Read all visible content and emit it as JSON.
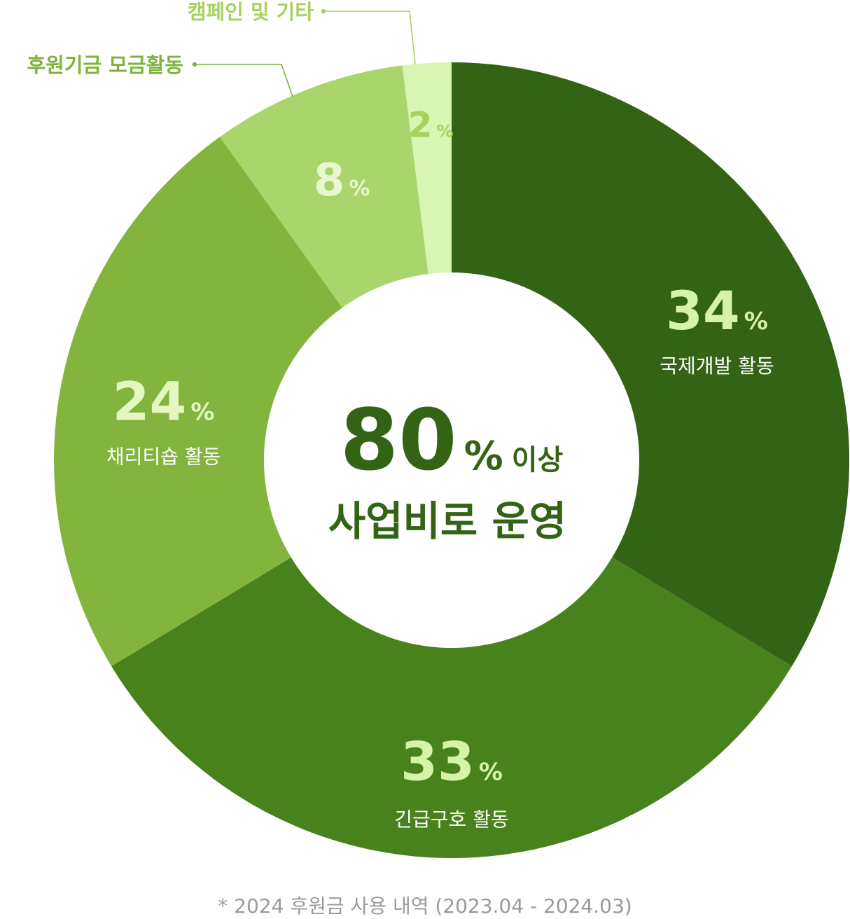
{
  "chart_data": {
    "type": "pie",
    "subtype": "donut",
    "title": "",
    "center": {
      "value": "80",
      "unit": "%",
      "suffix": "이상",
      "text": "사업비로 운영"
    },
    "slices": [
      {
        "label": "국제개발 활동",
        "value": 34,
        "color": "#336315",
        "value_color": "#d6f4a8",
        "label_color": "#ffffff"
      },
      {
        "label": "긴급구호 활동",
        "value": 33,
        "color": "#48821c",
        "value_color": "#d6f4a8",
        "label_color": "#ffffff"
      },
      {
        "label": "채리티숍 활동",
        "value": 24,
        "color": "#83b53e",
        "value_color": "#e4f7c0",
        "label_color": "#ffffff"
      },
      {
        "label": "후원기금 모금활동",
        "value": 8,
        "color": "#a9d56c",
        "value_color": "#e9f7cf",
        "label_color": "#7fb33a"
      },
      {
        "label": "캠페인 및 기타",
        "value": 2,
        "color": "#d9f5b3",
        "value_color": "#a6d260",
        "label_color": "#a6d260"
      }
    ],
    "unit": "%",
    "legend": "none"
  },
  "footnote": "* 2024 후원금 사용 내역 (2023.04 - 2024.03)"
}
